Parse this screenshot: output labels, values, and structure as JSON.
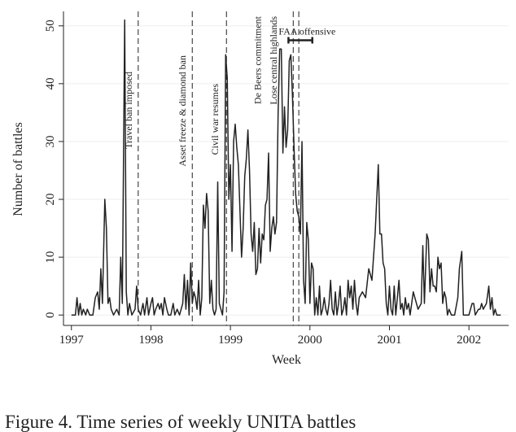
{
  "chart_data": {
    "type": "line",
    "xlabel": "Week",
    "ylabel": "Number of battles",
    "color": "#222222",
    "grid": true,
    "xlim": [
      1996.9,
      2002.5
    ],
    "xticks": [
      1997,
      1998,
      1999,
      2000,
      2001,
      2002
    ],
    "ylim": [
      -1.8,
      52.5
    ],
    "yticks": [
      0,
      10,
      20,
      30,
      40,
      50
    ],
    "annotations": [
      {
        "text": "Travel ban imposed",
        "x": 1997.84
      },
      {
        "text": "Asset freeze & diamond ban",
        "x": 1998.52
      },
      {
        "text": "Civil war resumes",
        "x": 1998.95
      },
      {
        "text": "De Beers commitment",
        "x": 1999.79
      },
      {
        "text": "Lose central highlands",
        "x": 1999.86
      }
    ],
    "range": {
      "text": "FAA offensive",
      "x": [
        1999.73,
        2000.03
      ],
      "y": 47.5
    },
    "x": [
      1997.0,
      1997.05,
      1997.07,
      1997.09,
      1997.11,
      1997.13,
      1997.15,
      1997.18,
      1997.2,
      1997.23,
      1997.27,
      1997.3,
      1997.33,
      1997.35,
      1997.37,
      1997.39,
      1997.42,
      1997.44,
      1997.46,
      1997.48,
      1997.5,
      1997.53,
      1997.57,
      1997.6,
      1997.62,
      1997.64,
      1997.67,
      1997.69,
      1997.71,
      1997.73,
      1997.76,
      1997.8,
      1997.82,
      1997.84,
      1997.87,
      1997.9,
      1997.92,
      1997.95,
      1997.97,
      1998.0,
      1998.02,
      1998.04,
      1998.06,
      1998.09,
      1998.11,
      1998.13,
      1998.15,
      1998.17,
      1998.2,
      1998.22,
      1998.25,
      1998.28,
      1998.3,
      1998.33,
      1998.36,
      1998.4,
      1998.42,
      1998.44,
      1998.46,
      1998.48,
      1998.5,
      1998.52,
      1998.54,
      1998.56,
      1998.58,
      1998.6,
      1998.62,
      1998.64,
      1998.66,
      1998.68,
      1998.7,
      1998.72,
      1998.74,
      1998.76,
      1998.78,
      1998.8,
      1998.82,
      1998.84,
      1998.86,
      1998.88,
      1998.9,
      1998.92,
      1998.94,
      1998.96,
      1998.98,
      1999.0,
      1999.02,
      1999.04,
      1999.06,
      1999.08,
      1999.1,
      1999.12,
      1999.14,
      1999.16,
      1999.18,
      1999.2,
      1999.22,
      1999.24,
      1999.26,
      1999.28,
      1999.3,
      1999.32,
      1999.34,
      1999.36,
      1999.38,
      1999.4,
      1999.42,
      1999.44,
      1999.46,
      1999.48,
      1999.5,
      1999.52,
      1999.54,
      1999.56,
      1999.58,
      1999.6,
      1999.62,
      1999.64,
      1999.66,
      1999.68,
      1999.7,
      1999.72,
      1999.74,
      1999.76,
      1999.78,
      1999.8,
      1999.82,
      1999.84,
      1999.86,
      1999.88,
      1999.9,
      1999.92,
      1999.94,
      1999.96,
      1999.98,
      2000.0,
      2000.02,
      2000.04,
      2000.06,
      2000.08,
      2000.1,
      2000.12,
      2000.14,
      2000.16,
      2000.18,
      2000.2,
      2000.22,
      2000.24,
      2000.26,
      2000.28,
      2000.3,
      2000.32,
      2000.34,
      2000.36,
      2000.38,
      2000.4,
      2000.42,
      2000.44,
      2000.46,
      2000.48,
      2000.5,
      2000.52,
      2000.54,
      2000.56,
      2000.58,
      2000.6,
      2000.62,
      2000.66,
      2000.7,
      2000.74,
      2000.78,
      2000.82,
      2000.86,
      2000.88,
      2000.9,
      2000.92,
      2000.94,
      2000.96,
      2000.98,
      2001.0,
      2001.02,
      2001.04,
      2001.06,
      2001.08,
      2001.1,
      2001.12,
      2001.14,
      2001.16,
      2001.18,
      2001.2,
      2001.22,
      2001.24,
      2001.26,
      2001.28,
      2001.3,
      2001.32,
      2001.36,
      2001.4,
      2001.42,
      2001.44,
      2001.47,
      2001.49,
      2001.51,
      2001.53,
      2001.55,
      2001.57,
      2001.59,
      2001.61,
      2001.63,
      2001.65,
      2001.67,
      2001.69,
      2001.71,
      2001.73,
      2001.75,
      2001.78,
      2001.82,
      2001.86,
      2001.88,
      2001.91,
      2001.93,
      2001.96,
      2002.0,
      2002.04,
      2002.06,
      2002.08,
      2002.12,
      2002.14,
      2002.16,
      2002.18,
      2002.22,
      2002.25,
      2002.27,
      2002.29,
      2002.31,
      2002.33,
      2002.35,
      2002.4
    ],
    "values": [
      0,
      0,
      3,
      0,
      2,
      0,
      1,
      0,
      1,
      0,
      0,
      3,
      4,
      1,
      8,
      2,
      20,
      15,
      2,
      3,
      1,
      0,
      1,
      0,
      10,
      2,
      51,
      4,
      0,
      2,
      0,
      1,
      5,
      1,
      0,
      2,
      0,
      3,
      0,
      2,
      3,
      0,
      1,
      2,
      1,
      2,
      0,
      3,
      1,
      0,
      0,
      2,
      0,
      1,
      0,
      2,
      7,
      1,
      6,
      0,
      9,
      2,
      4,
      3,
      1,
      6,
      0,
      3,
      19,
      15,
      21,
      18,
      2,
      6,
      1,
      0,
      1,
      23,
      2,
      1,
      0,
      4,
      45,
      41,
      20,
      26,
      11,
      30,
      33,
      29,
      26,
      18,
      10,
      15,
      24,
      27,
      32,
      25,
      14,
      11,
      16,
      7,
      8,
      15,
      9,
      14,
      13,
      19,
      20,
      28,
      11,
      15,
      17,
      14,
      16,
      35,
      46,
      46,
      28,
      36,
      29,
      32,
      44,
      45,
      38,
      29,
      21,
      18,
      17,
      14,
      30,
      6,
      2,
      16,
      13,
      2,
      9,
      8,
      0,
      3,
      0,
      5,
      0,
      1,
      3,
      1,
      0,
      2,
      6,
      1,
      0,
      4,
      0,
      2,
      5,
      0,
      1,
      3,
      0,
      6,
      3,
      5,
      1,
      6,
      2,
      0,
      3,
      4,
      3,
      8,
      6,
      14,
      26,
      14,
      14,
      9,
      8,
      2,
      0,
      5,
      1,
      0,
      5,
      0,
      3,
      6,
      1,
      2,
      0,
      3,
      1,
      2,
      0,
      2,
      4,
      3,
      1,
      2,
      12,
      2,
      14,
      13,
      4,
      8,
      5,
      5,
      4,
      10,
      8,
      9,
      2,
      4,
      3,
      0,
      1,
      0,
      0,
      3,
      8,
      11,
      0,
      0,
      0,
      2,
      2,
      0,
      1,
      1,
      2,
      1,
      2,
      5,
      1,
      3,
      0,
      1,
      0,
      0
    ]
  },
  "caption": "Figure 4. Time series of weekly UNITA battles"
}
